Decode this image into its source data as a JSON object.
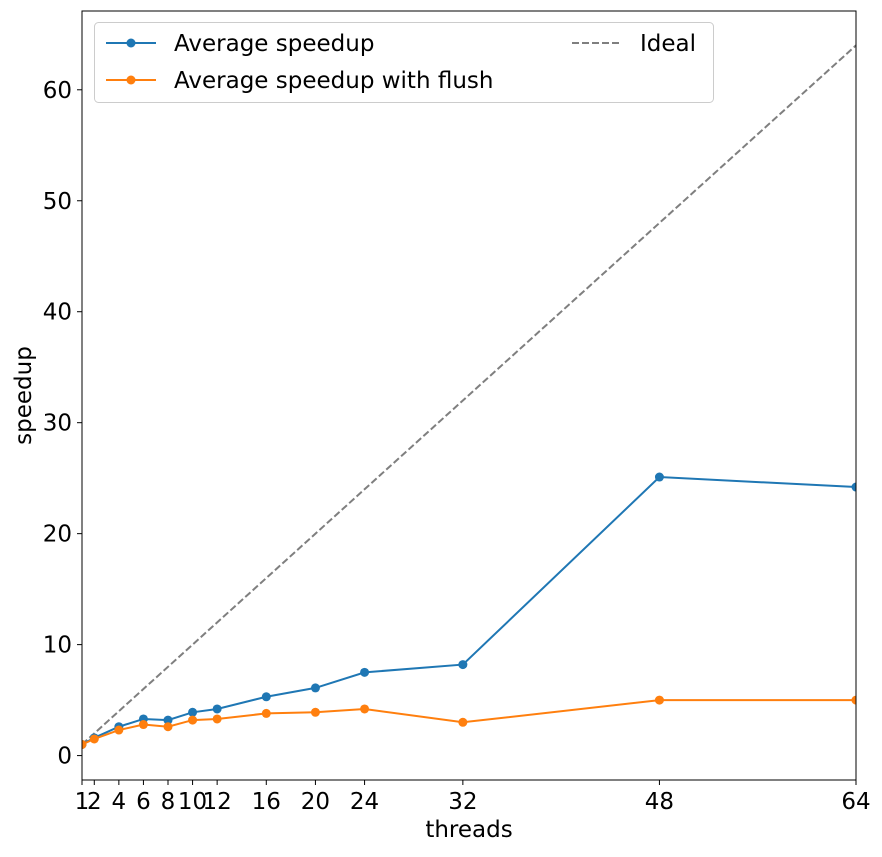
{
  "chart_data": {
    "type": "line",
    "title": "",
    "xlabel": "threads",
    "ylabel": "speedup",
    "xlim": [
      1,
      64
    ],
    "ylim": [
      -2.2,
      67.1
    ],
    "x_ticks": [
      1,
      2,
      4,
      6,
      8,
      10,
      12,
      16,
      20,
      24,
      32,
      48,
      64
    ],
    "y_ticks": [
      0,
      10,
      20,
      30,
      40,
      50,
      60
    ],
    "grid": false,
    "legend": {
      "placement": "upper-left",
      "columns": 2
    },
    "series": [
      {
        "name": "Average speedup",
        "color": "#1f77b4",
        "style": "solid",
        "marker": "circle",
        "x": [
          1,
          2,
          4,
          6,
          8,
          10,
          12,
          16,
          20,
          24,
          32,
          48,
          64
        ],
        "values": [
          1.0,
          1.6,
          2.6,
          3.3,
          3.2,
          3.9,
          4.2,
          5.3,
          6.1,
          7.5,
          8.2,
          25.1,
          24.2
        ]
      },
      {
        "name": "Average speedup with flush",
        "color": "#ff7f0e",
        "style": "solid",
        "marker": "circle",
        "x": [
          1,
          2,
          4,
          6,
          8,
          10,
          12,
          16,
          20,
          24,
          32,
          48,
          64
        ],
        "values": [
          1.0,
          1.5,
          2.3,
          2.8,
          2.6,
          3.2,
          3.3,
          3.8,
          3.9,
          4.2,
          3.0,
          5.0,
          5.0
        ]
      },
      {
        "name": "Ideal",
        "color": "#7f7f7f",
        "style": "dashed",
        "marker": "none",
        "x": [
          1,
          64
        ],
        "values": [
          1,
          64
        ]
      }
    ]
  }
}
